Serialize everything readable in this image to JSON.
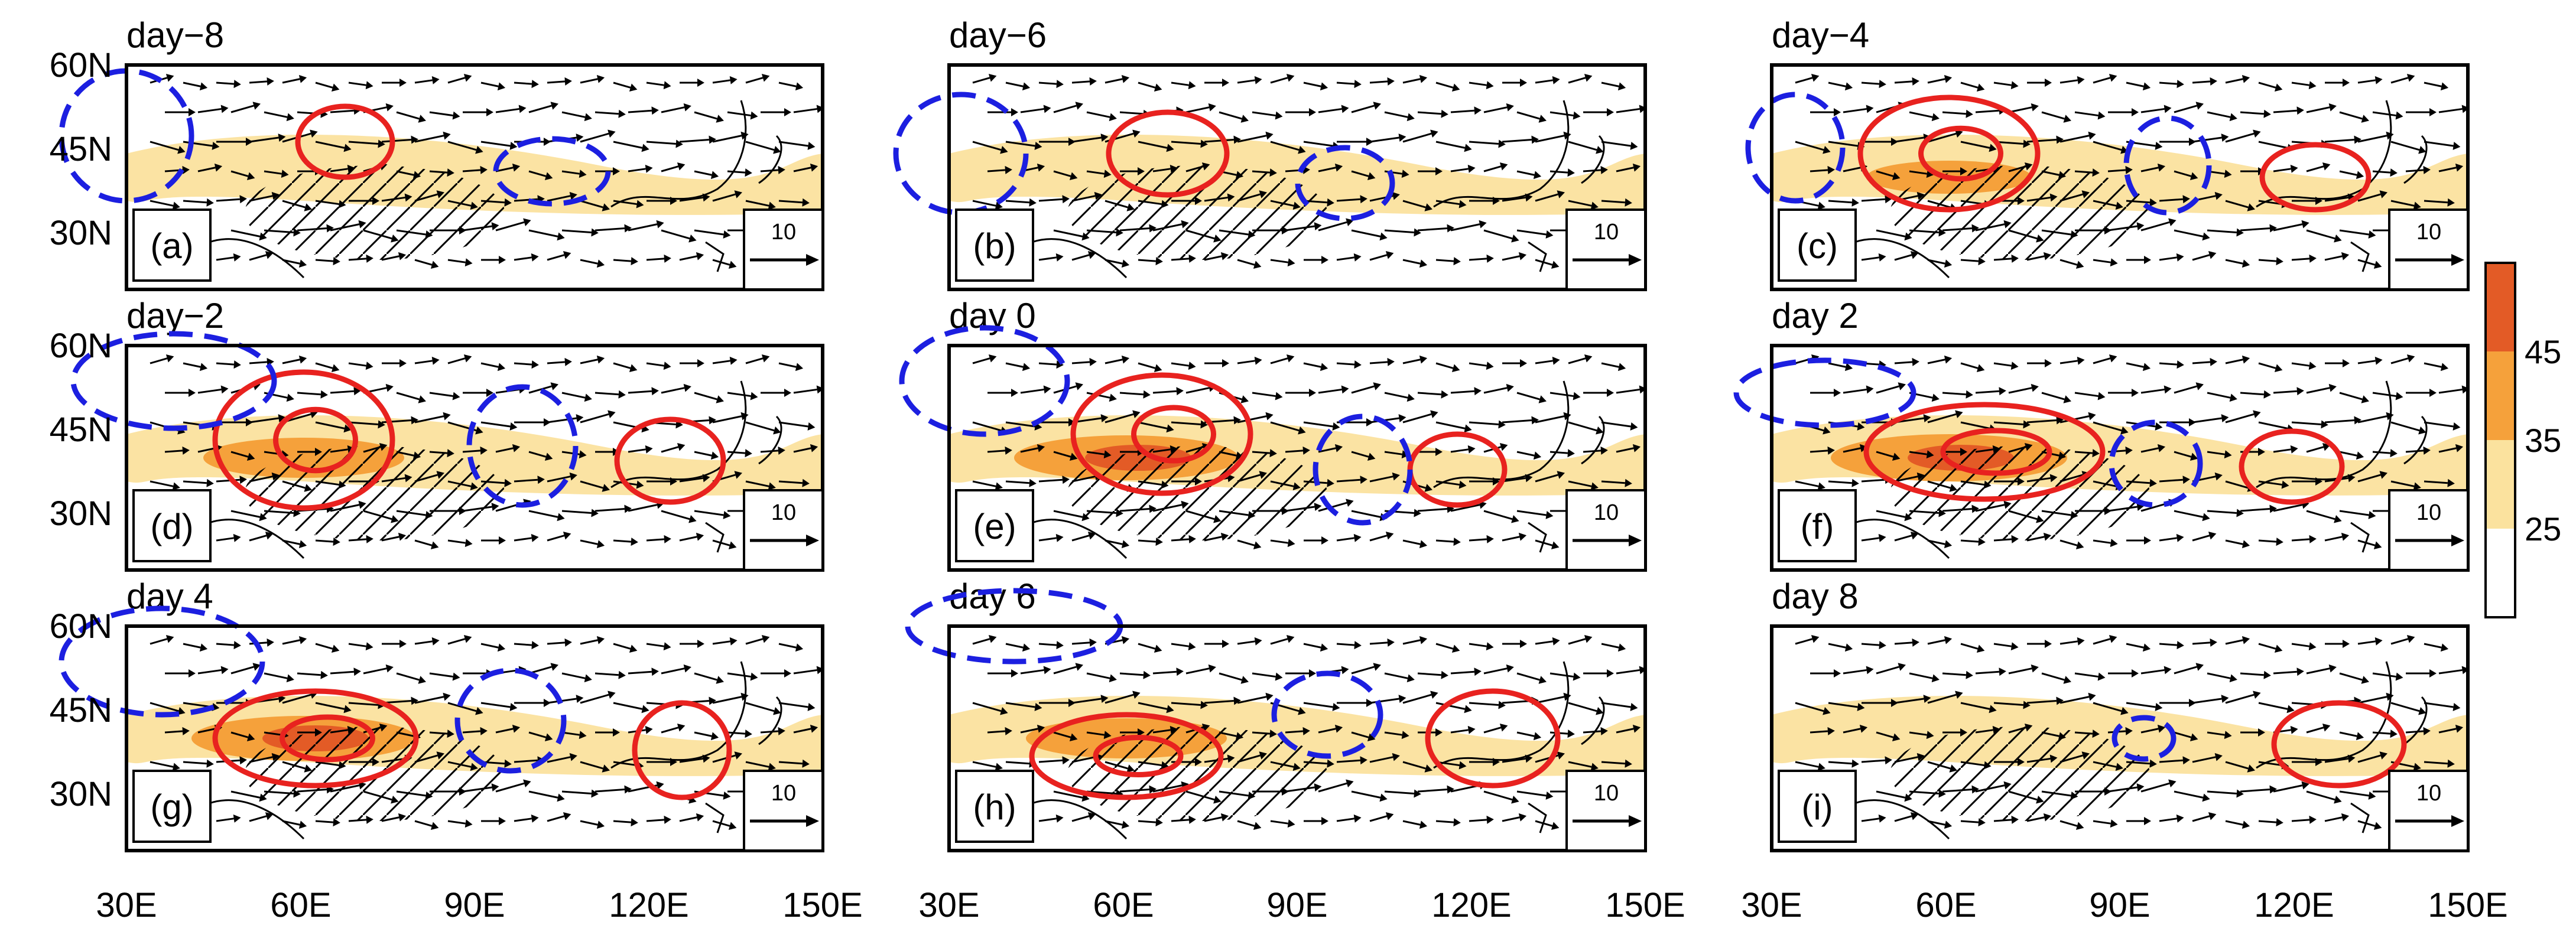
{
  "figure": {
    "colors": {
      "shade_25_35": "#fbe29e",
      "shade_35_45": "#f5a13b",
      "shade_45_plus": "#e35b26",
      "positive_contour": "#e8221f",
      "negative_contour": "#1c1fe0",
      "coast": "#000000"
    },
    "y_axis": [
      "60N",
      "45N",
      "30N"
    ],
    "x_axis": [
      "30E",
      "60E",
      "90E",
      "120E",
      "150E"
    ],
    "reference_vector": "10",
    "colorbar": {
      "labels": [
        "45",
        "35",
        "25"
      ]
    },
    "panels": [
      {
        "title": "day−8",
        "label": "(a)",
        "jet_intensity": 0.55
      },
      {
        "title": "day−6",
        "label": "(b)",
        "jet_intensity": 0.6
      },
      {
        "title": "day−4",
        "label": "(c)",
        "jet_intensity": 0.7
      },
      {
        "title": "day−2",
        "label": "(d)",
        "jet_intensity": 0.85
      },
      {
        "title": "day 0",
        "label": "(e)",
        "jet_intensity": 0.95
      },
      {
        "title": "day 2",
        "label": "(f)",
        "jet_intensity": 1.0
      },
      {
        "title": "day 4",
        "label": "(g)",
        "jet_intensity": 0.95
      },
      {
        "title": "day 6",
        "label": "(h)",
        "jet_intensity": 0.85
      },
      {
        "title": "day 8",
        "label": "(i)",
        "jet_intensity": 0.6
      }
    ]
  }
}
